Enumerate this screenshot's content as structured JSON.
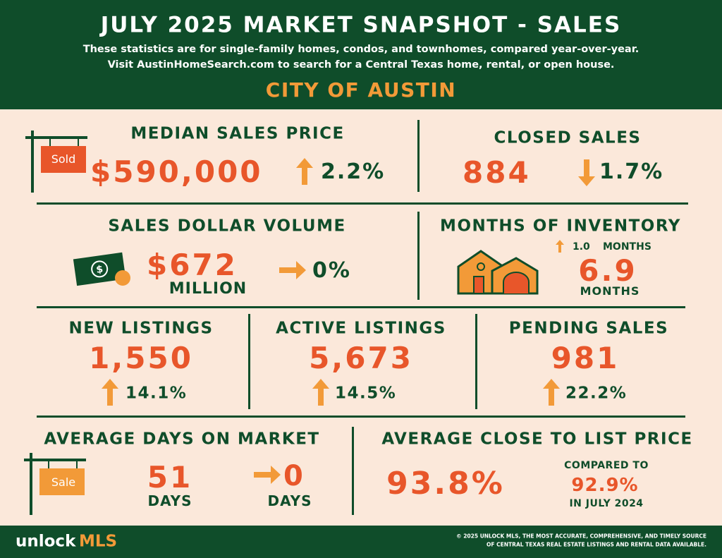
{
  "header": {
    "title": "JULY 2025 MARKET SNAPSHOT - SALES",
    "subtitle_lines": [
      "These statistics are for single-family homes, condos, and townhomes, compared year-over-year.",
      "Visit AustinHomeSearch.com to search for a Central Texas home, rental, or open house."
    ],
    "region": "CITY OF AUSTIN"
  },
  "median_sales_price": {
    "label": "MEDIAN SALES PRICE",
    "sign_label": "Sold",
    "value": "$590,000",
    "change": "2.2%"
  },
  "closed_sales": {
    "label": "CLOSED SALES",
    "value": "884",
    "change": "1.7%"
  },
  "sales_dollar_volume": {
    "label": "SALES DOLLAR VOLUME",
    "value": "$672",
    "unit": "MILLION",
    "change": "0%"
  },
  "months_of_inventory": {
    "label": "MONTHS OF INVENTORY",
    "change": "1.0",
    "change_unit": "MONTHS",
    "value": "6.9",
    "unit": "MONTHS"
  },
  "new_listings": {
    "label": "NEW LISTINGS",
    "value": "1,550",
    "change": "14.1%"
  },
  "active_listings": {
    "label": "ACTIVE LISTINGS",
    "value": "5,673",
    "change": "14.5%"
  },
  "pending_sales": {
    "label": "PENDING SALES",
    "value": "981",
    "change": "22.2%"
  },
  "average_days_on_market": {
    "label": "AVERAGE DAYS ON MARKET",
    "sign_label": "Sale",
    "value": "51",
    "unit": "DAYS",
    "change": "0",
    "change_unit": "DAYS"
  },
  "average_close_to_list_price": {
    "label": "AVERAGE CLOSE TO LIST PRICE",
    "value": "93.8%",
    "comparison_label": "COMPARED TO",
    "comparison_value": "92.9%",
    "comparison_period": "IN JULY 2024"
  },
  "footer": {
    "brand": "unlock",
    "brand_accent": "MLS",
    "notice_lines": [
      "© 2025 UNLOCK MLS, THE MOST ACCURATE, COMPREHENSIVE, AND TIMELY SOURCE",
      "OF CENTRAL TEXAS REAL ESTATE LISTINGS AND RENTAL DATA AVAILABLE."
    ]
  }
}
